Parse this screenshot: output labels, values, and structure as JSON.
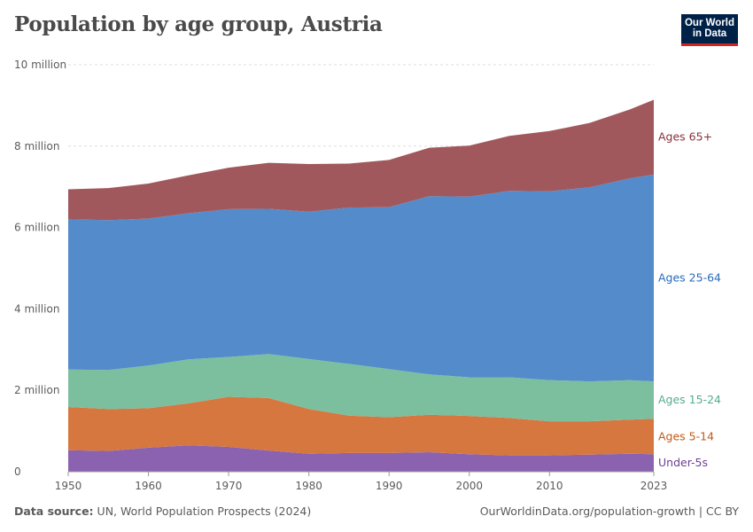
{
  "header": {
    "title": "Population by age group, Austria",
    "logo_line1": "Our World",
    "logo_line2": "in Data"
  },
  "footer": {
    "source_label": "Data source:",
    "source_text": "UN, World Population Prospects (2024)",
    "link_text": "OurWorldinData.org/population-growth | CC BY"
  },
  "chart_data": {
    "type": "area",
    "stacked": true,
    "title": "Population by age group, Austria",
    "xlabel": "",
    "ylabel": "",
    "xlim": [
      1950,
      2023
    ],
    "ylim": [
      0,
      10000000
    ],
    "x_ticks": [
      1950,
      1960,
      1970,
      1980,
      1990,
      2000,
      2010,
      2023
    ],
    "y_ticks": [
      {
        "value": 0,
        "label": "0"
      },
      {
        "value": 2000000,
        "label": "2 million"
      },
      {
        "value": 4000000,
        "label": "4 million"
      },
      {
        "value": 6000000,
        "label": "6 million"
      },
      {
        "value": 8000000,
        "label": "8 million"
      },
      {
        "value": 10000000,
        "label": "10 million"
      }
    ],
    "grid": true,
    "legend": "right-inline",
    "x": [
      1950,
      1955,
      1960,
      1965,
      1970,
      1975,
      1980,
      1985,
      1990,
      1995,
      2000,
      2005,
      2010,
      2015,
      2020,
      2023
    ],
    "series": [
      {
        "name": "Under-5s",
        "label": "Under-5s",
        "color": "#6d3e91",
        "area_color": "#8a62b0",
        "values": [
          530000,
          510000,
          590000,
          650000,
          610000,
          520000,
          440000,
          460000,
          460000,
          480000,
          430000,
          400000,
          400000,
          420000,
          440000,
          430000
        ]
      },
      {
        "name": "Ages 5-14",
        "label": "Ages 5-14",
        "color": "#c05917",
        "area_color": "#d6773f",
        "values": [
          1060000,
          1030000,
          970000,
          1030000,
          1230000,
          1290000,
          1100000,
          920000,
          880000,
          920000,
          940000,
          920000,
          840000,
          820000,
          840000,
          870000
        ]
      },
      {
        "name": "Ages 15-24",
        "label": "Ages 15-24",
        "color": "#58ac8c",
        "area_color": "#7bbf9f",
        "values": [
          920000,
          960000,
          1050000,
          1080000,
          980000,
          1080000,
          1230000,
          1270000,
          1180000,
          990000,
          950000,
          1000000,
          1010000,
          980000,
          970000,
          920000
        ]
      },
      {
        "name": "Ages 25-64",
        "label": "Ages 25-64",
        "color": "#286bbb",
        "area_color": "#548bca",
        "values": [
          3690000,
          3680000,
          3610000,
          3590000,
          3630000,
          3570000,
          3620000,
          3840000,
          3980000,
          4380000,
          4440000,
          4580000,
          4640000,
          4770000,
          4960000,
          5080000
        ]
      },
      {
        "name": "Ages 65+",
        "label": "Ages 65+",
        "color": "#883039",
        "area_color": "#a0585c",
        "values": [
          740000,
          790000,
          860000,
          930000,
          1020000,
          1130000,
          1170000,
          1080000,
          1160000,
          1190000,
          1250000,
          1350000,
          1480000,
          1580000,
          1690000,
          1840000
        ]
      }
    ]
  }
}
